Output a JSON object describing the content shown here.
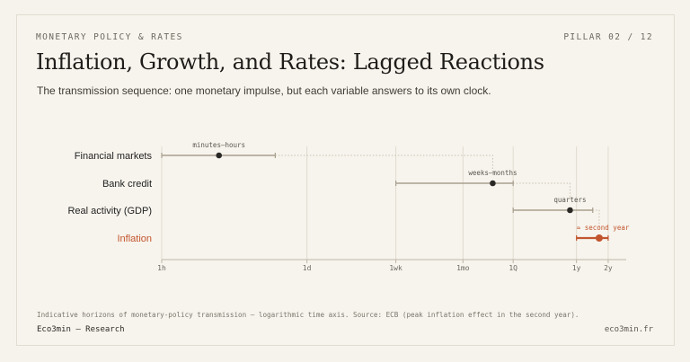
{
  "header": {
    "eyebrow": "MONETARY POLICY & RATES",
    "pillar": "PILLAR 02 / 12",
    "title": "Inflation, Growth, and Rates: Lagged Reactions",
    "subtitle": "The transmission sequence: one monetary impulse, but each variable answers to its own clock."
  },
  "footer": {
    "note": "Indicative horizons of monetary-policy transmission — logarithmic time axis. Source: ECB (peak inflation effect in the second year).",
    "brand": "Eco3min — Research",
    "site": "eco3min.fr"
  },
  "colors": {
    "neutral": "#a89f8e",
    "dot": "#2a2825",
    "accent": "#c2552e",
    "grid": "#e1dbcf",
    "connector": "#c9c2b4",
    "axis": "#bdb6a8",
    "label": "#222"
  },
  "chart_data": {
    "type": "range",
    "scale": "log",
    "unit": "hours",
    "x_ticks": [
      {
        "label": "1h",
        "hours": 1
      },
      {
        "label": "1d",
        "hours": 24
      },
      {
        "label": "1wk",
        "hours": 168
      },
      {
        "label": "1mo",
        "hours": 730
      },
      {
        "label": "1Q",
        "hours": 2190
      },
      {
        "label": "1y",
        "hours": 8760
      },
      {
        "label": "2y",
        "hours": 17520
      }
    ],
    "xlim": [
      1,
      26000
    ],
    "series": [
      {
        "name": "Financial markets",
        "range": [
          1,
          12
        ],
        "point": 3.5,
        "annotation": "minutes–hours",
        "highlight": false
      },
      {
        "name": "Bank credit",
        "range": [
          168,
          2190
        ],
        "point": 1400,
        "annotation": "weeks–months",
        "highlight": false
      },
      {
        "name": "Real activity (GDP)",
        "range": [
          2190,
          12500
        ],
        "point": 7600,
        "annotation": "quarters",
        "highlight": false
      },
      {
        "name": "Inflation",
        "range": [
          8760,
          17520
        ],
        "point": 14400,
        "annotation": "≈ second year",
        "highlight": true
      }
    ]
  }
}
